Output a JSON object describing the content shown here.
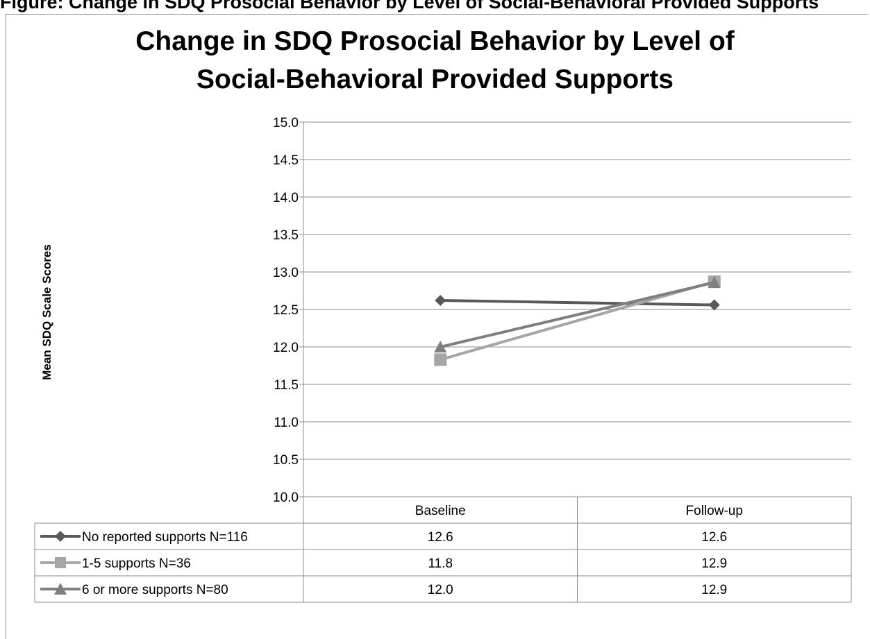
{
  "header_text": "Figure: Change in SDQ Prosocial Behavior by Level of Social-Behavioral Provided Supports",
  "chart_data": {
    "type": "line",
    "title": "Change in SDQ Prosocial Behavior by Level of Social-Behavioral Provided Supports",
    "title_lines": [
      "Change in SDQ Prosocial Behavior by Level of",
      "Social-Behavioral Provided Supports"
    ],
    "ylabel": "Mean SDQ Scale Scores",
    "xlabel": "",
    "ylim": [
      10.0,
      15.0
    ],
    "yticks": [
      "15.0",
      "14.5",
      "14.0",
      "13.5",
      "13.0",
      "12.5",
      "12.0",
      "11.5",
      "11.0",
      "10.5",
      "10.0"
    ],
    "categories": [
      "Baseline",
      "Follow-up"
    ],
    "grid": true,
    "legend_placement": "data-table-left",
    "series": [
      {
        "name": "No reported supports N=116",
        "values": [
          12.62,
          12.56
        ],
        "labels": [
          "12.6",
          "12.6"
        ],
        "marker": "diamond",
        "color": "#595959"
      },
      {
        "name": "1-5 supports N=36",
        "values": [
          11.83,
          12.87
        ],
        "labels": [
          "11.8",
          "12.9"
        ],
        "marker": "square",
        "color": "#a6a6a6"
      },
      {
        "name": "6 or more supports N=80",
        "values": [
          12.0,
          12.86
        ],
        "labels": [
          "12.0",
          "12.9"
        ],
        "marker": "triangle",
        "color": "#7f7f7f"
      }
    ]
  }
}
